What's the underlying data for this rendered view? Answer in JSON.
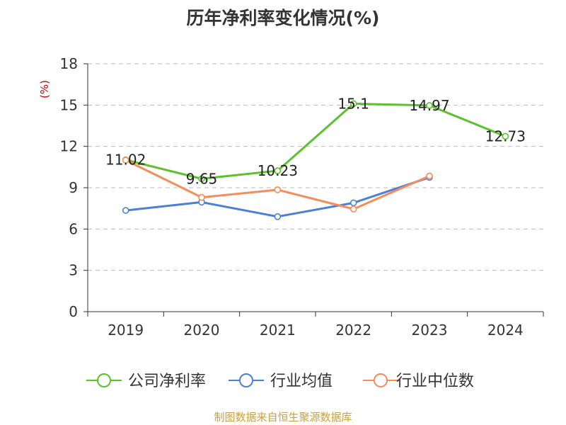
{
  "chart_data": {
    "type": "line",
    "title": "历年净利率变化情况(%)",
    "ylabel": "(%)",
    "xlabel": "",
    "categories": [
      "2019",
      "2020",
      "2021",
      "2022",
      "2023",
      "2024"
    ],
    "ylim": [
      0,
      18
    ],
    "yticks": [
      0,
      3,
      6,
      9,
      12,
      15,
      18
    ],
    "grid": true,
    "legend_position": "bottom",
    "series": [
      {
        "name": "公司净利率",
        "color": "#5cc12d",
        "values": [
          11.02,
          9.65,
          10.23,
          15.1,
          14.97,
          12.73
        ],
        "labels": [
          "11.02",
          "9.65",
          "10.23",
          "15.1",
          "14.97",
          "12.73"
        ]
      },
      {
        "name": "行业均值",
        "color": "#4c7fd8",
        "values": [
          7.35,
          7.95,
          6.9,
          7.9,
          9.75,
          null
        ]
      },
      {
        "name": "行业中位数",
        "color": "#f48c5c",
        "values": [
          11.0,
          8.3,
          8.85,
          7.45,
          9.85,
          null
        ]
      }
    ],
    "source": "制图数据来自恒生聚源数据库"
  },
  "colors": {
    "title": "#333333",
    "axis": "#333333",
    "grid": "#bbbbbb",
    "ylabel": "#cc0000",
    "source": "#c8a040"
  }
}
